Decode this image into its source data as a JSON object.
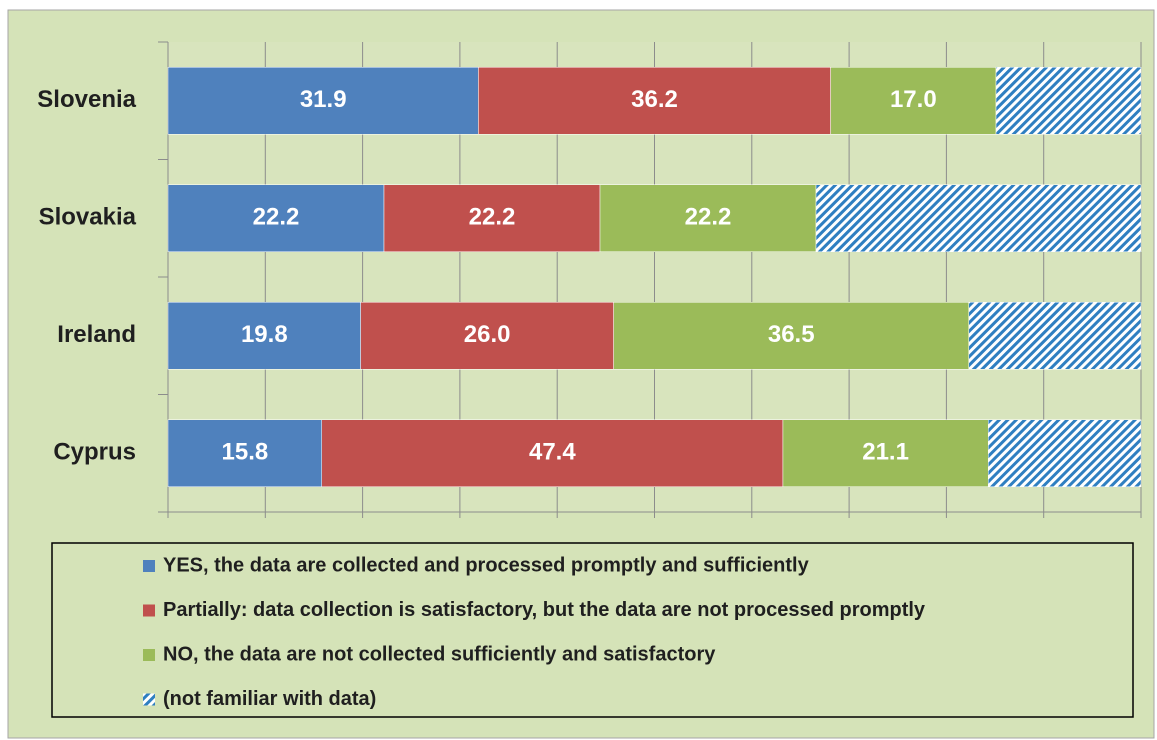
{
  "chart_data": {
    "type": "stacked-barh",
    "categories": [
      "Slovenia",
      "Slovakia",
      "Ireland",
      "Cyprus"
    ],
    "series": [
      {
        "name": "YES, the data are collected and processed promptly and sufficiently",
        "color": "#4f81bd",
        "values": [
          31.9,
          22.2,
          19.8,
          15.8
        ],
        "value_labels": [
          "31.9",
          "22.2",
          "19.8",
          "15.8"
        ]
      },
      {
        "name": "Partially: data collection is satisfactory, but the data are not processed promptly",
        "color": "#c0504d",
        "values": [
          36.2,
          22.2,
          26.0,
          47.4
        ],
        "value_labels": [
          "36.2",
          "22.2",
          "26.0",
          "47.4"
        ]
      },
      {
        "name": "NO, the data are not collected sufficiently and satisfactory",
        "color": "#9bbb59",
        "values": [
          17.0,
          22.2,
          36.5,
          21.1
        ],
        "value_labels": [
          "17.0",
          "22.2",
          "36.5",
          "21.1"
        ]
      },
      {
        "name": "(not familiar with data)",
        "color": "#2f7fc1",
        "pattern": "diagonal-hatch",
        "values": [
          14.9,
          33.4,
          17.7,
          15.7
        ]
      }
    ],
    "xlim": [
      0,
      100
    ],
    "xticks": [
      0,
      10,
      20,
      30,
      40,
      50,
      60,
      70,
      80,
      90,
      100
    ],
    "grid": true
  }
}
